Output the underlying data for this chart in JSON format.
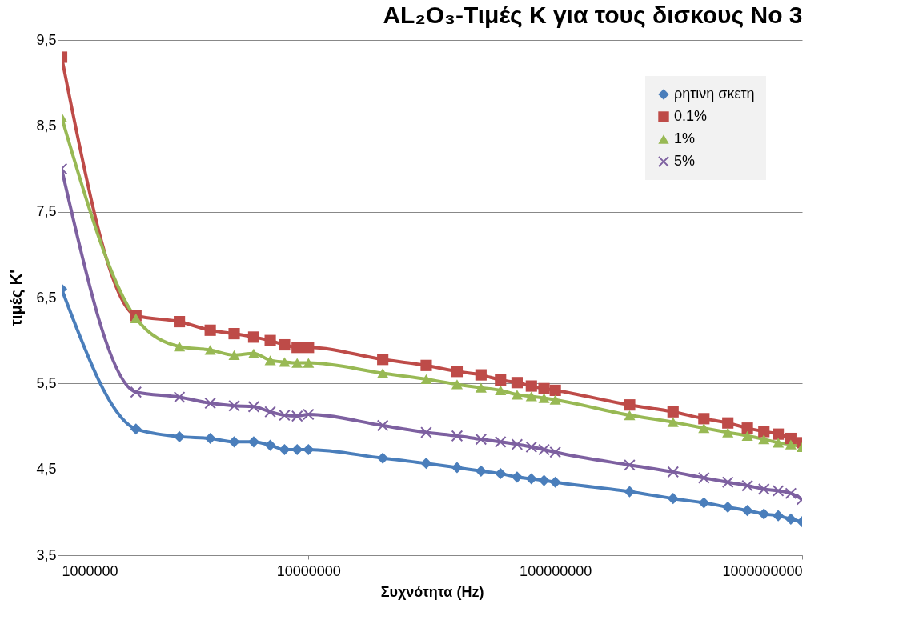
{
  "chart_data": {
    "type": "line",
    "title": "AL₂O₃-Τιμές Κ για τους δισκους  Νο 3",
    "xlabel": "Συχνότητα (Hz)",
    "ylabel": "τιμές Κ'",
    "x": [
      1000000,
      2000000,
      3000000,
      4000000,
      5000000,
      6000000,
      7000000,
      8000000,
      9000000,
      10000000,
      20000000,
      30000000,
      40000000,
      50000000,
      60000000,
      70000000,
      80000000,
      90000000,
      100000000,
      200000000,
      300000000,
      400000000,
      500000000,
      600000000,
      700000000,
      800000000,
      900000000,
      1000000000
    ],
    "series": [
      {
        "name": "ρητινη σκετη",
        "color": "#4a7ebb",
        "marker": "diamond",
        "values": [
          6.6,
          4.97,
          4.88,
          4.86,
          4.82,
          4.82,
          4.78,
          4.73,
          4.73,
          4.73,
          4.63,
          4.57,
          4.52,
          4.48,
          4.45,
          4.41,
          4.39,
          4.37,
          4.35,
          4.24,
          4.16,
          4.11,
          4.06,
          4.02,
          3.98,
          3.96,
          3.92,
          3.89
        ]
      },
      {
        "name": "0.1%",
        "color": "#be4b48",
        "marker": "square",
        "values": [
          9.3,
          6.29,
          6.22,
          6.12,
          6.08,
          6.04,
          6.0,
          5.95,
          5.92,
          5.92,
          5.78,
          5.71,
          5.64,
          5.6,
          5.54,
          5.51,
          5.47,
          5.44,
          5.42,
          5.25,
          5.17,
          5.09,
          5.04,
          4.98,
          4.94,
          4.91,
          4.86,
          4.81
        ]
      },
      {
        "name": "1%",
        "color": "#98b954",
        "marker": "triangle",
        "values": [
          8.6,
          6.26,
          5.93,
          5.89,
          5.83,
          5.85,
          5.77,
          5.75,
          5.74,
          5.74,
          5.62,
          5.55,
          5.49,
          5.45,
          5.42,
          5.37,
          5.35,
          5.33,
          5.31,
          5.13,
          5.05,
          4.98,
          4.93,
          4.89,
          4.85,
          4.81,
          4.79,
          4.76
        ]
      },
      {
        "name": "5%",
        "color": "#7d60a0",
        "marker": "cross",
        "values": [
          8.0,
          5.4,
          5.34,
          5.27,
          5.24,
          5.23,
          5.17,
          5.13,
          5.12,
          5.14,
          5.01,
          4.93,
          4.89,
          4.85,
          4.82,
          4.79,
          4.76,
          4.73,
          4.7,
          4.55,
          4.47,
          4.4,
          4.35,
          4.31,
          4.27,
          4.25,
          4.22,
          4.15
        ]
      }
    ],
    "log": "x",
    "xlim": [
      1000000,
      1000000000
    ],
    "xticks": [
      1000000,
      10000000,
      100000000,
      1000000000
    ],
    "ylim": [
      3.5,
      9.5
    ],
    "yticks": [
      {
        "value": 3.5,
        "label": "3,5"
      },
      {
        "value": 4.5,
        "label": "4,5"
      },
      {
        "value": 5.5,
        "label": "5,5"
      },
      {
        "value": 6.5,
        "label": "6,5"
      },
      {
        "value": 7.5,
        "label": "7,5"
      },
      {
        "value": 8.5,
        "label": "8,5"
      },
      {
        "value": 9.5,
        "label": "9,5"
      }
    ],
    "grid": "y",
    "legend": "top right",
    "line_style": "solid"
  }
}
